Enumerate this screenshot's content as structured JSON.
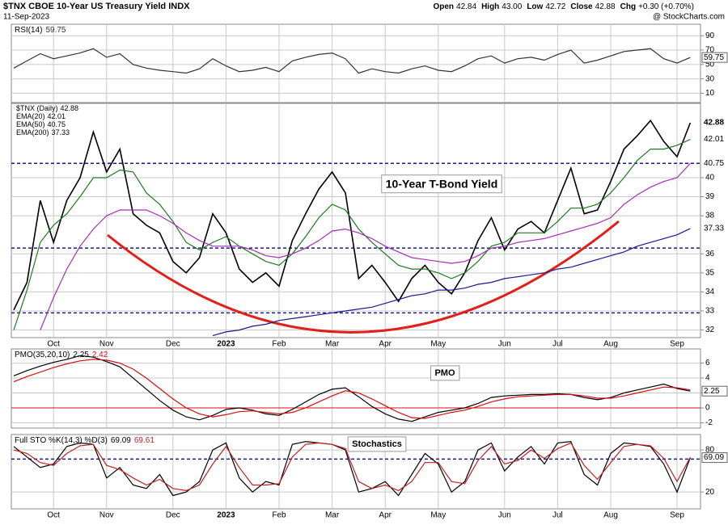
{
  "header": {
    "title": "$TNX CBOE 10-Year US Treasury Yield INDX",
    "date": "11-Sep-2023",
    "quote": [
      {
        "label": "Open",
        "value": "42.84"
      },
      {
        "label": "High",
        "value": "43.00"
      },
      {
        "label": "Low",
        "value": "42.72"
      },
      {
        "label": "Close",
        "value": "42.88"
      },
      {
        "label": "Chg",
        "value": "+0.30 (+0.70%)"
      }
    ],
    "credit": "@ StockCharts.com"
  },
  "chart_data": [
    {
      "type": "line",
      "title": "RSI(14)",
      "ylim": [
        -3,
        106
      ],
      "yticks": [
        10,
        30,
        50,
        70,
        90
      ],
      "grid": true,
      "series": [
        {
          "color": "#333333",
          "last": 59.75,
          "values": [
            45,
            55,
            65,
            58,
            62,
            66,
            72,
            60,
            65,
            50,
            45,
            42,
            40,
            38,
            44,
            58,
            48,
            40,
            42,
            46,
            40,
            55,
            60,
            64,
            66,
            58,
            38,
            44,
            40,
            38,
            44,
            48,
            42,
            40,
            48,
            58,
            62,
            52,
            58,
            60,
            56,
            64,
            70,
            52,
            56,
            62,
            68,
            70,
            72,
            58,
            52,
            59.75
          ]
        }
      ]
    },
    {
      "type": "line",
      "ylim": [
        31.6,
        43.9
      ],
      "yticks": [
        32,
        33,
        34,
        35,
        36,
        38,
        39,
        40
      ],
      "grid": true,
      "hlines": [
        40.75,
        36.3,
        32.9
      ],
      "hline_color": "#1a1a8c",
      "annotation": "10-Year T-Bond Yield",
      "categories": [
        null,
        null,
        null,
        "Oct",
        null,
        null,
        null,
        "Nov",
        null,
        null,
        null,
        null,
        "Dec",
        null,
        null,
        null,
        "2023",
        null,
        null,
        null,
        "Feb",
        null,
        null,
        null,
        "Mar",
        null,
        null,
        null,
        "Apr",
        null,
        null,
        null,
        "May",
        null,
        null,
        null,
        null,
        "Jun",
        null,
        null,
        null,
        "Jul",
        null,
        null,
        null,
        "Aug",
        null,
        null,
        null,
        null,
        "Sep",
        null
      ],
      "series": [
        {
          "name": "$TNX (Daily)",
          "color": "#000000",
          "last": 42.88,
          "values": [
            33.05,
            34.5,
            38.8,
            36.6,
            38.8,
            40.0,
            42.4,
            40.3,
            41.5,
            38.1,
            37.5,
            37.1,
            35.6,
            35.0,
            35.8,
            38.1,
            37.1,
            35.2,
            34.5,
            35.0,
            34.3,
            36.7,
            38.1,
            39.4,
            40.3,
            39.2,
            34.7,
            35.4,
            34.5,
            33.5,
            34.7,
            35.4,
            34.5,
            33.9,
            35.0,
            36.7,
            37.9,
            36.2,
            37.3,
            37.7,
            37.1,
            38.8,
            40.5,
            38.1,
            38.3,
            39.8,
            41.5,
            42.2,
            43.0,
            41.9,
            41.1,
            42.88
          ]
        },
        {
          "name": "EMA(20)",
          "color": "#1f7a1f",
          "last": 42.01,
          "values": [
            32.0,
            34.1,
            36.6,
            37.5,
            38.1,
            39.0,
            40.0,
            40.0,
            40.4,
            40.3,
            39.2,
            38.6,
            37.7,
            36.6,
            36.2,
            36.6,
            36.9,
            36.4,
            36.0,
            35.6,
            35.4,
            36.0,
            36.9,
            37.9,
            38.6,
            38.3,
            37.3,
            36.6,
            36.0,
            35.4,
            35.2,
            35.2,
            35.0,
            34.7,
            35.0,
            35.6,
            36.4,
            36.6,
            37.1,
            37.1,
            37.1,
            37.7,
            38.4,
            38.4,
            38.6,
            39.2,
            40.0,
            40.9,
            41.5,
            41.5,
            41.7,
            42.01
          ]
        },
        {
          "name": "EMA(50)",
          "color": "#a030b0",
          "last": 40.75,
          "values": [
            null,
            null,
            32.0,
            33.7,
            35.2,
            36.4,
            37.3,
            38.0,
            38.3,
            38.3,
            38.3,
            38.0,
            37.6,
            37.1,
            36.7,
            36.4,
            36.4,
            36.4,
            36.2,
            35.9,
            35.8,
            36.0,
            36.3,
            36.7,
            37.2,
            37.3,
            37.1,
            36.8,
            36.4,
            36.1,
            35.8,
            35.7,
            35.6,
            35.5,
            35.6,
            35.9,
            36.3,
            36.4,
            36.6,
            36.7,
            36.8,
            37.0,
            37.2,
            37.4,
            37.6,
            37.9,
            38.6,
            39.1,
            39.5,
            39.8,
            40.0,
            40.75
          ]
        },
        {
          "name": "EMA(200)",
          "color": "#1a1a8c",
          "last": 37.33,
          "values": [
            null,
            null,
            null,
            null,
            null,
            null,
            null,
            null,
            null,
            null,
            null,
            null,
            null,
            null,
            null,
            31.7,
            31.9,
            32.0,
            32.2,
            32.3,
            32.5,
            32.6,
            32.7,
            32.8,
            32.9,
            33.0,
            33.1,
            33.2,
            33.4,
            33.6,
            33.8,
            33.9,
            34.1,
            34.1,
            34.2,
            34.4,
            34.5,
            34.7,
            34.8,
            34.9,
            35.0,
            35.2,
            35.3,
            35.5,
            35.7,
            35.9,
            36.1,
            36.4,
            36.6,
            36.8,
            37.0,
            37.33
          ]
        }
      ]
    },
    {
      "type": "line",
      "title": "PMO(35,20,10)",
      "ylim": [
        -2.7,
        7.9
      ],
      "yticks": [
        -2,
        0,
        2,
        4,
        6
      ],
      "grid": true,
      "zero_line_color": "#d01010",
      "annotation": "PMO",
      "series": [
        {
          "color": "#000000",
          "last": 2.25,
          "values": [
            4.3,
            5.0,
            5.6,
            6.1,
            6.5,
            7.0,
            6.8,
            6.2,
            5.5,
            4.0,
            2.5,
            1.0,
            -0.3,
            -1.2,
            -1.6,
            -1.0,
            -0.2,
            0.0,
            -0.3,
            -0.8,
            -1.0,
            -0.2,
            0.8,
            1.8,
            2.5,
            2.7,
            1.5,
            0.2,
            -0.8,
            -1.5,
            -1.8,
            -1.2,
            -0.6,
            -0.3,
            0.0,
            0.6,
            1.4,
            1.6,
            1.7,
            1.8,
            1.8,
            1.9,
            1.8,
            1.4,
            1.1,
            1.4,
            2.0,
            2.4,
            2.8,
            3.2,
            2.6,
            2.25
          ]
        },
        {
          "color": "#d01010",
          "last": 2.42,
          "values": [
            3.5,
            4.2,
            4.8,
            5.4,
            5.9,
            6.3,
            6.5,
            6.4,
            6.0,
            5.2,
            4.0,
            2.6,
            1.2,
            0.0,
            -0.8,
            -1.2,
            -0.9,
            -0.5,
            -0.4,
            -0.6,
            -0.8,
            -0.6,
            0.0,
            0.8,
            1.6,
            2.3,
            2.0,
            1.2,
            0.3,
            -0.6,
            -1.3,
            -1.4,
            -1.0,
            -0.6,
            -0.3,
            0.2,
            0.8,
            1.2,
            1.5,
            1.6,
            1.7,
            1.8,
            1.8,
            1.6,
            1.3,
            1.3,
            1.6,
            2.0,
            2.4,
            2.8,
            2.7,
            2.42
          ]
        }
      ]
    },
    {
      "type": "line",
      "title": "Full STO %K(14,3) %D(3)",
      "ylim": [
        -4,
        102
      ],
      "yticks": [
        20,
        80
      ],
      "grid": true,
      "hlines": [
        67
      ],
      "hline_color": "#1a1a8c",
      "annotation": "Stochastics",
      "categories": [
        null,
        null,
        null,
        "Oct",
        null,
        null,
        null,
        "Nov",
        null,
        null,
        null,
        null,
        "Dec",
        null,
        null,
        null,
        "2023",
        null,
        null,
        null,
        "Feb",
        null,
        null,
        null,
        "Mar",
        null,
        null,
        null,
        "Apr",
        null,
        null,
        null,
        "May",
        null,
        null,
        null,
        null,
        "Jun",
        null,
        null,
        null,
        "Jul",
        null,
        null,
        null,
        "Aug",
        null,
        null,
        null,
        null,
        "Sep",
        null
      ],
      "series": [
        {
          "color": "#000000",
          "last": 69.09,
          "values": [
            85,
            70,
            55,
            60,
            85,
            90,
            88,
            40,
            55,
            30,
            25,
            45,
            15,
            20,
            35,
            80,
            90,
            40,
            20,
            35,
            30,
            88,
            92,
            90,
            88,
            80,
            20,
            25,
            35,
            15,
            45,
            75,
            60,
            20,
            35,
            80,
            90,
            50,
            70,
            85,
            60,
            90,
            92,
            45,
            30,
            75,
            90,
            88,
            85,
            60,
            20,
            69.09
          ]
        },
        {
          "color": "#c02020",
          "last": 69.61,
          "values": [
            80,
            75,
            62,
            58,
            75,
            86,
            88,
            58,
            52,
            40,
            30,
            38,
            25,
            22,
            30,
            60,
            85,
            55,
            30,
            30,
            32,
            70,
            88,
            90,
            88,
            82,
            35,
            25,
            30,
            22,
            35,
            62,
            62,
            35,
            32,
            65,
            85,
            60,
            65,
            80,
            68,
            82,
            90,
            58,
            38,
            62,
            85,
            88,
            86,
            68,
            35,
            69.61
          ]
        }
      ]
    }
  ]
}
